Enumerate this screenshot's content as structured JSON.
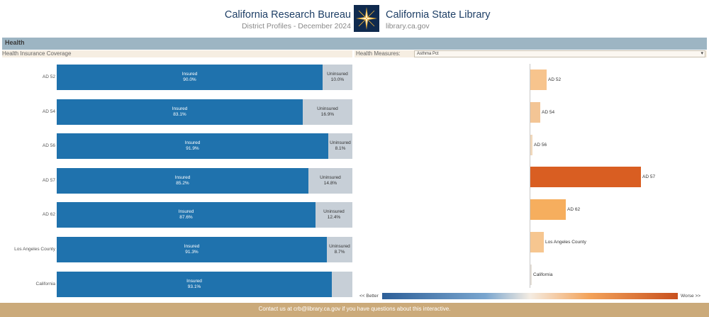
{
  "header": {
    "left_title": "California Research Bureau",
    "left_subtitle": "District Profiles - December 2024",
    "right_title": "California State Library",
    "right_subtitle": "library.ca.gov",
    "logo_icon": "star-seal-icon"
  },
  "section": {
    "title": "Health"
  },
  "coverage": {
    "title": "Health Insurance Coverage",
    "colors": {
      "insured": "#1f72ad",
      "uninsured": "#c7cfd7"
    }
  },
  "measures": {
    "title": "Health Measures:",
    "selected_option": "Asthma Pct",
    "dropdown_icon": "dropdown-arrow-icon"
  },
  "chart_data": [
    {
      "type": "bar",
      "orientation": "horizontal",
      "stacked": true,
      "categories": [
        "AD 52",
        "AD 54",
        "AD 56",
        "AD 57",
        "AD 62",
        "Los Angeles County",
        "California"
      ],
      "series": [
        {
          "name": "Insured",
          "values": [
            90.0,
            83.1,
            91.9,
            85.2,
            87.6,
            91.3,
            93.1
          ],
          "labels": [
            "90.0%",
            "83.1%",
            "91.9%",
            "85.2%",
            "87.6%",
            "91.3%",
            "93.1%"
          ]
        },
        {
          "name": "Uninsured",
          "values": [
            10.0,
            16.9,
            8.1,
            14.8,
            12.4,
            8.7,
            6.9
          ],
          "labels": [
            "10.0%",
            "16.9%",
            "8.1%",
            "14.8%",
            "12.4%",
            "8.7%",
            ""
          ]
        }
      ]
    },
    {
      "type": "bar",
      "orientation": "horizontal",
      "categories": [
        "AD 52",
        "AD 54",
        "AD 56",
        "AD 57",
        "AD 62",
        "Los Angeles County",
        "California"
      ],
      "values": [
        0.15,
        0.09,
        0.02,
        1.0,
        0.32,
        0.12,
        0.01
      ],
      "colors": [
        "#f7c48d",
        "#f3c595",
        "#f0d8bc",
        "#d95e22",
        "#f6ae5e",
        "#f6c690",
        "#e6e0d8"
      ],
      "legend": {
        "left": "<< Better",
        "right": "Worse >>"
      }
    }
  ],
  "footer": {
    "text": "Contact us at crb@library.ca.gov if you have questions about this interactive."
  }
}
